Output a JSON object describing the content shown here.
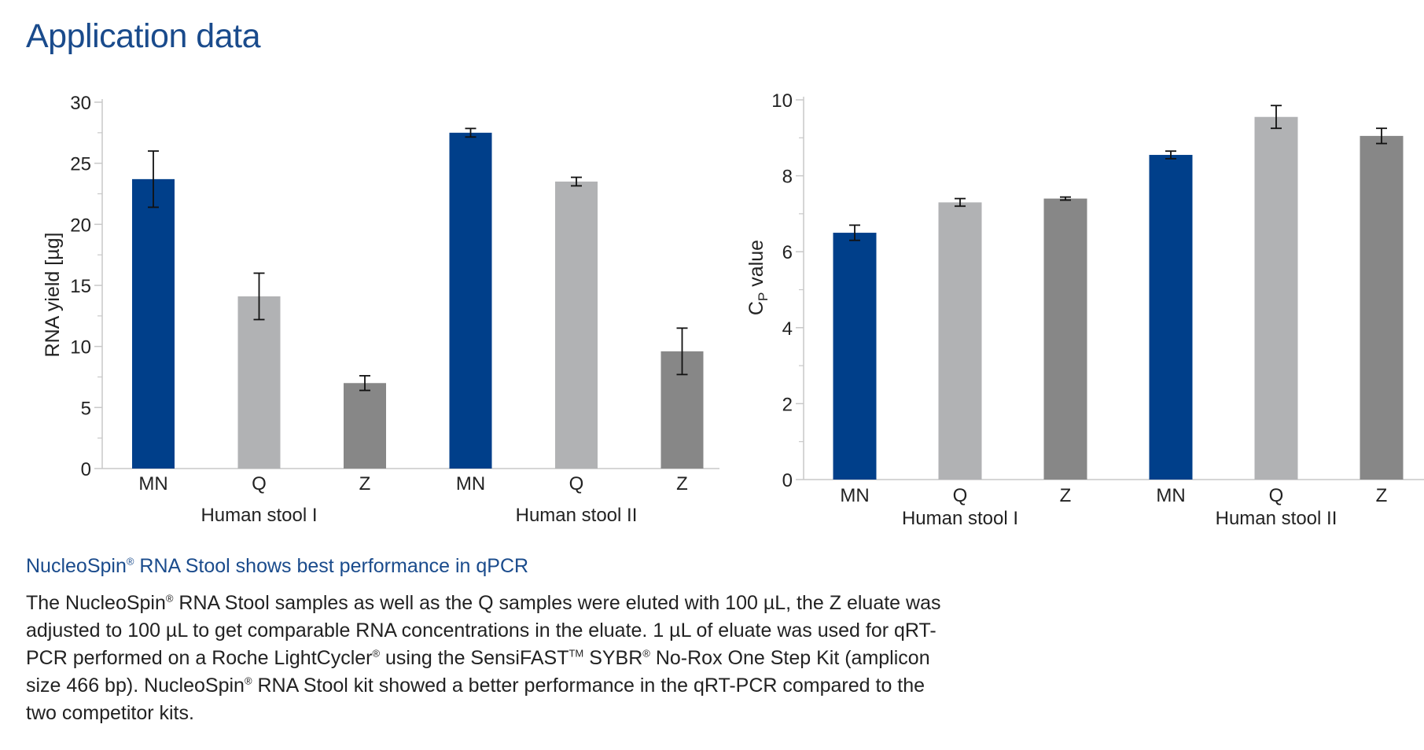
{
  "page": {
    "title": "Application data",
    "caption_heading_pre": "NucleoSpin",
    "caption_heading_sup": "®",
    "caption_heading_post": " RNA Stool shows best performance in qPCR",
    "caption_lines": [
      [
        {
          "t": "The NucleoSpin"
        },
        {
          "s": "®"
        },
        {
          "t": " RNA Stool samples as well as the Q samples were eluted with 100 µL, the Z eluate was"
        }
      ],
      [
        {
          "t": "adjusted to 100 µL to get comparable RNA concentrations in the eluate. 1 µL of eluate was used for qRT-"
        }
      ],
      [
        {
          "t": "PCR performed on a Roche LightCycler"
        },
        {
          "s": "®"
        },
        {
          "t": " using the SensiFAST"
        },
        {
          "s": "TM"
        },
        {
          "t": " SYBR"
        },
        {
          "s": "®"
        },
        {
          "t": " No-Rox One Step Kit (amplicon"
        }
      ],
      [
        {
          "t": "size 466 bp). NucleoSpin"
        },
        {
          "s": "®"
        },
        {
          "t": " RNA Stool kit showed a better performance in the qRT-PCR compared to the"
        }
      ],
      [
        {
          "t": "two competitor kits."
        }
      ]
    ]
  },
  "colors": {
    "MN": "#003f8a",
    "Q": "#b1b2b4",
    "Z": "#878787",
    "title": "#1a4b8c"
  },
  "chart_data": [
    {
      "type": "bar",
      "ylabel": "RNA yield [µg]",
      "ylim": [
        0,
        30
      ],
      "yticks": [
        0,
        5,
        10,
        15,
        20,
        25,
        30
      ],
      "categories": [
        "MN",
        "Q",
        "Z",
        "MN",
        "Q",
        "Z"
      ],
      "groups": [
        "Human stool I",
        "Human stool II"
      ],
      "values": [
        23.7,
        14.1,
        7.0,
        27.5,
        23.5,
        9.6
      ],
      "errors": [
        2.3,
        1.9,
        0.6,
        0.35,
        0.35,
        1.9
      ],
      "grid": false
    },
    {
      "type": "bar",
      "ylabel_main": "C",
      "ylabel_sub": "P",
      "ylabel_rest": " value",
      "ylim": [
        0,
        10
      ],
      "yticks": [
        0,
        2,
        4,
        6,
        8,
        10
      ],
      "categories": [
        "MN",
        "Q",
        "Z",
        "MN",
        "Q",
        "Z"
      ],
      "groups": [
        "Human stool I",
        "Human stool II"
      ],
      "values": [
        6.5,
        7.3,
        7.4,
        8.55,
        9.55,
        9.05
      ],
      "errors": [
        0.2,
        0.1,
        0.04,
        0.1,
        0.3,
        0.2
      ],
      "grid": false
    }
  ]
}
